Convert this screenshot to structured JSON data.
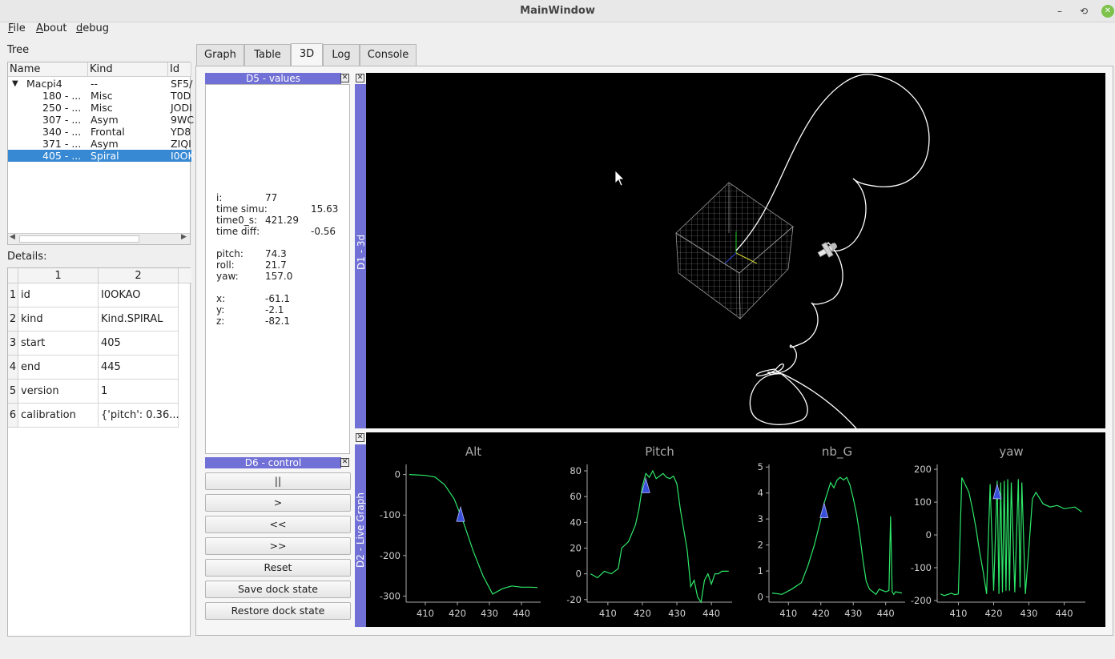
{
  "window": {
    "title": "MainWindow",
    "min": "–",
    "restore": "⟲",
    "close": "✕"
  },
  "menu": [
    "File",
    "About",
    "debug"
  ],
  "tree": {
    "label": "Tree",
    "columns": [
      "Name",
      "Kind",
      "Id"
    ],
    "root": {
      "name": "Macpi4",
      "kind": "--",
      "id": "SF5/"
    },
    "rows": [
      {
        "name": "180 - ...",
        "kind": "Misc",
        "id": "T0D"
      },
      {
        "name": "250 - ...",
        "kind": "Misc",
        "id": "JODI"
      },
      {
        "name": "307 - ...",
        "kind": "Asym",
        "id": "9WC"
      },
      {
        "name": "340 - ...",
        "kind": "Frontal",
        "id": "YD8"
      },
      {
        "name": "371 - ...",
        "kind": "Asym",
        "id": "ZIQI"
      },
      {
        "name": "405 - ...",
        "kind": "Spiral",
        "id": "I0OK"
      }
    ]
  },
  "details": {
    "label": "Details:",
    "columns": [
      "1",
      "2"
    ],
    "rows": [
      {
        "n": "1",
        "k": "id",
        "v": "I0OKAO"
      },
      {
        "n": "2",
        "k": "kind",
        "v": "Kind.SPIRAL"
      },
      {
        "n": "3",
        "k": "start",
        "v": "405"
      },
      {
        "n": "4",
        "k": "end",
        "v": "445"
      },
      {
        "n": "5",
        "k": "version",
        "v": "1"
      },
      {
        "n": "6",
        "k": "calibration",
        "v": "{'pitch': 0.36..."
      }
    ]
  },
  "tabs": [
    "Graph",
    "Table",
    "3D",
    "Log",
    "Console"
  ],
  "active_tab": "3D",
  "d5": {
    "title": "D5 - values",
    "values": [
      {
        "k": "i:",
        "v": "77"
      },
      {
        "k": "time simu:",
        "v": "15.63",
        "wide": true
      },
      {
        "k": "time0_s:",
        "v": "421.29"
      },
      {
        "k": "time diff:",
        "v": "-0.56",
        "wide": true
      },
      {
        "k": "pitch:",
        "v": "74.3"
      },
      {
        "k": "roll:",
        "v": "21.7"
      },
      {
        "k": "yaw:",
        "v": "157.0"
      },
      {
        "k": "x:",
        "v": "-61.1"
      },
      {
        "k": "y:",
        "v": "-2.1"
      },
      {
        "k": "z:",
        "v": "-82.1"
      }
    ]
  },
  "d6": {
    "title": "D6 - control",
    "buttons": [
      "||",
      ">",
      "<<",
      ">>",
      "Reset",
      "Save dock state",
      "Restore dock state"
    ]
  },
  "d1": {
    "title": "D1 - 3d"
  },
  "d2": {
    "title": "D2 - Live Graph"
  },
  "colors": {
    "accent": "#7070d6",
    "selection": "#3789d4",
    "plot_line": "#2ee86a",
    "marker": "#3a4fd8"
  },
  "chart_data": [
    {
      "type": "line",
      "title": "Alt",
      "x": [
        405,
        410,
        413,
        416,
        419,
        422,
        425,
        428,
        431,
        434,
        437,
        440,
        443,
        445
      ],
      "values": [
        0,
        -2,
        -6,
        -25,
        -60,
        -120,
        -190,
        -250,
        -295,
        -282,
        -275,
        -278,
        -278,
        -279
      ],
      "xlim": [
        404,
        446
      ],
      "ylim": [
        -315,
        25
      ],
      "xticks": [
        410,
        420,
        430,
        440
      ],
      "yticks": [
        0,
        -100,
        -200,
        -300
      ],
      "marker": {
        "x": 421,
        "y": -100
      }
    },
    {
      "type": "line",
      "title": "Pitch",
      "x": [
        405,
        407,
        409,
        411,
        413,
        414,
        416,
        418,
        419,
        420,
        421,
        422,
        423,
        424,
        425,
        426,
        427,
        428,
        429,
        430,
        431,
        433,
        434,
        435,
        436,
        437,
        438,
        439,
        440,
        441,
        442,
        443,
        445
      ],
      "values": [
        0,
        -3,
        2,
        0,
        4,
        20,
        25,
        38,
        50,
        68,
        78,
        75,
        80,
        74,
        76,
        78,
        75,
        74,
        76,
        70,
        50,
        18,
        -10,
        -5,
        -18,
        -22,
        -5,
        0,
        -8,
        0,
        0,
        2,
        2
      ],
      "xlim": [
        404,
        446
      ],
      "ylim": [
        -22,
        85
      ],
      "xticks": [
        410,
        420,
        430,
        440
      ],
      "yticks": [
        80,
        60,
        40,
        20,
        0,
        -20
      ],
      "marker": {
        "x": 421,
        "y": 68
      }
    },
    {
      "type": "line",
      "title": "nb_G",
      "x": [
        405,
        408,
        411,
        414,
        416,
        418,
        420,
        421,
        422,
        423,
        424,
        425,
        426,
        427,
        428,
        429,
        430,
        431,
        432,
        433,
        434,
        435,
        436,
        437,
        438,
        439,
        440,
        441,
        441.5,
        442,
        442.5,
        443,
        445
      ],
      "values": [
        0.15,
        0.1,
        0.3,
        0.55,
        1.2,
        2.0,
        3.0,
        3.6,
        4.0,
        4.4,
        4.2,
        4.5,
        4.6,
        4.5,
        4.6,
        4.3,
        3.8,
        3.2,
        2.4,
        1.4,
        0.6,
        0.3,
        0.2,
        0.1,
        0.3,
        0.25,
        0.2,
        0.25,
        3.1,
        0.2,
        0.1,
        0.2,
        0.15
      ],
      "xlim": [
        404,
        446
      ],
      "ylim": [
        -0.2,
        5.1
      ],
      "xticks": [
        410,
        420,
        430,
        440
      ],
      "yticks": [
        5,
        4,
        3,
        2,
        1,
        0
      ],
      "marker": {
        "x": 421,
        "y": 3.3
      }
    },
    {
      "type": "line",
      "title": "yaw",
      "x": [
        405,
        406,
        408,
        409,
        410,
        411,
        413,
        414,
        415,
        416,
        417,
        418,
        419,
        420,
        421,
        421.5,
        422,
        422.5,
        423,
        423.5,
        424,
        424.5,
        425,
        426,
        427,
        427.5,
        428,
        429,
        430,
        431,
        432,
        434,
        436,
        438,
        440,
        443,
        445
      ],
      "values": [
        -180,
        -185,
        -178,
        -182,
        -180,
        175,
        130,
        80,
        20,
        -50,
        -110,
        -180,
        155,
        -170,
        165,
        -180,
        160,
        -175,
        165,
        -170,
        170,
        -170,
        160,
        -175,
        170,
        -160,
        160,
        -180,
        -40,
        110,
        130,
        95,
        85,
        90,
        80,
        85,
        70
      ],
      "xlim": [
        404,
        446
      ],
      "ylim": [
        -205,
        215
      ],
      "xticks": [
        410,
        420,
        430,
        440
      ],
      "yticks": [
        200,
        100,
        0,
        -100,
        -200
      ],
      "marker": {
        "x": 421,
        "y": 130
      }
    }
  ]
}
